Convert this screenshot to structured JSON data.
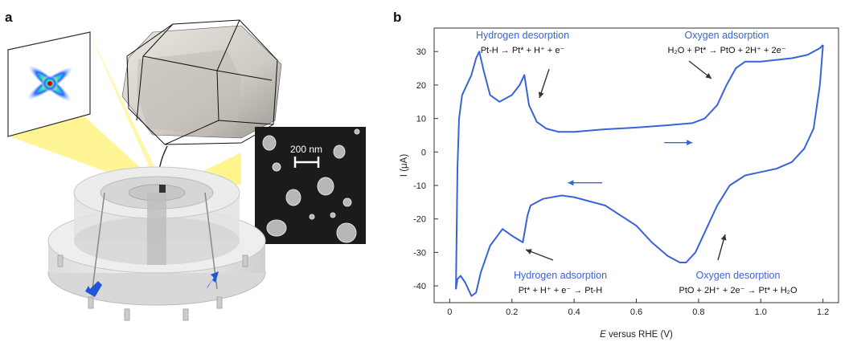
{
  "panel_a": {
    "letter": "a",
    "sem_scale_label": "200 nm"
  },
  "panel_b": {
    "letter": "b"
  },
  "chart_data": {
    "type": "line",
    "title": "",
    "xlabel_italic": "E",
    "xlabel_rest": " versus RHE (V)",
    "ylabel": "I (μA)",
    "xlim": [
      -0.05,
      1.25
    ],
    "ylim": [
      -45,
      37
    ],
    "x_ticks": [
      0,
      0.2,
      0.4,
      0.6,
      0.8,
      1.0,
      1.2
    ],
    "x_tick_labels": [
      "0",
      "0.2",
      "0.4",
      "0.6",
      "0.8",
      "1.0",
      "1.2"
    ],
    "y_ticks": [
      -40,
      -30,
      -20,
      -10,
      0,
      10,
      20,
      30
    ],
    "y_tick_labels": [
      "-40",
      "-30",
      "-20",
      "-10",
      "0",
      "10",
      "20",
      "30"
    ],
    "line_color": "#3a63d8",
    "series": [
      {
        "name": "anodic_scan",
        "x": [
          0.02,
          0.025,
          0.03,
          0.04,
          0.05,
          0.07,
          0.085,
          0.095,
          0.11,
          0.13,
          0.16,
          0.2,
          0.225,
          0.24,
          0.255,
          0.28,
          0.31,
          0.35,
          0.4,
          0.5,
          0.6,
          0.7,
          0.78,
          0.82,
          0.86,
          0.89,
          0.92,
          0.95,
          1.0,
          1.05,
          1.1,
          1.15,
          1.19,
          1.2
        ],
        "y": [
          -41,
          -5,
          10,
          17,
          19,
          23,
          28,
          30,
          24,
          17,
          15,
          17,
          20,
          23,
          14,
          9,
          7,
          6,
          6,
          6.8,
          7.3,
          8,
          8.6,
          10,
          14,
          20,
          25,
          27,
          27,
          27.5,
          28,
          29,
          31,
          32
        ]
      },
      {
        "name": "cathodic_scan",
        "x": [
          1.2,
          1.19,
          1.17,
          1.14,
          1.1,
          1.05,
          1.0,
          0.95,
          0.9,
          0.86,
          0.82,
          0.79,
          0.76,
          0.74,
          0.7,
          0.65,
          0.6,
          0.5,
          0.4,
          0.36,
          0.3,
          0.26,
          0.25,
          0.235,
          0.2,
          0.17,
          0.13,
          0.1,
          0.085,
          0.07,
          0.05,
          0.035,
          0.025,
          0.02
        ],
        "y": [
          32,
          20,
          7,
          1,
          -3,
          -5,
          -6,
          -7,
          -10,
          -16,
          -24,
          -30,
          -33,
          -33,
          -31,
          -27,
          -22,
          -16,
          -13.5,
          -13,
          -14,
          -16,
          -19,
          -27,
          -25,
          -23,
          -28,
          -36,
          -42,
          -43,
          -39,
          -37,
          -38,
          -41
        ]
      }
    ],
    "annotations": [
      {
        "name": "hydrogen-desorption",
        "title": "Hydrogen desorption",
        "equation": "Pt-H → Pt* + H⁺ + e⁻"
      },
      {
        "name": "oxygen-adsorption",
        "title": "Oxygen adsorption",
        "equation": "H₂O + Pt* → PtO + 2H⁺ + 2e⁻"
      },
      {
        "name": "hydrogen-adsorption",
        "title": "Hydrogen adsorption",
        "equation": "Pt* + H⁺ + e⁻ → Pt-H"
      },
      {
        "name": "oxygen-desorption",
        "title": "Oxygen desorption",
        "equation": "PtO + 2H⁺ + 2e⁻ → Pt* + H₂O"
      }
    ]
  }
}
